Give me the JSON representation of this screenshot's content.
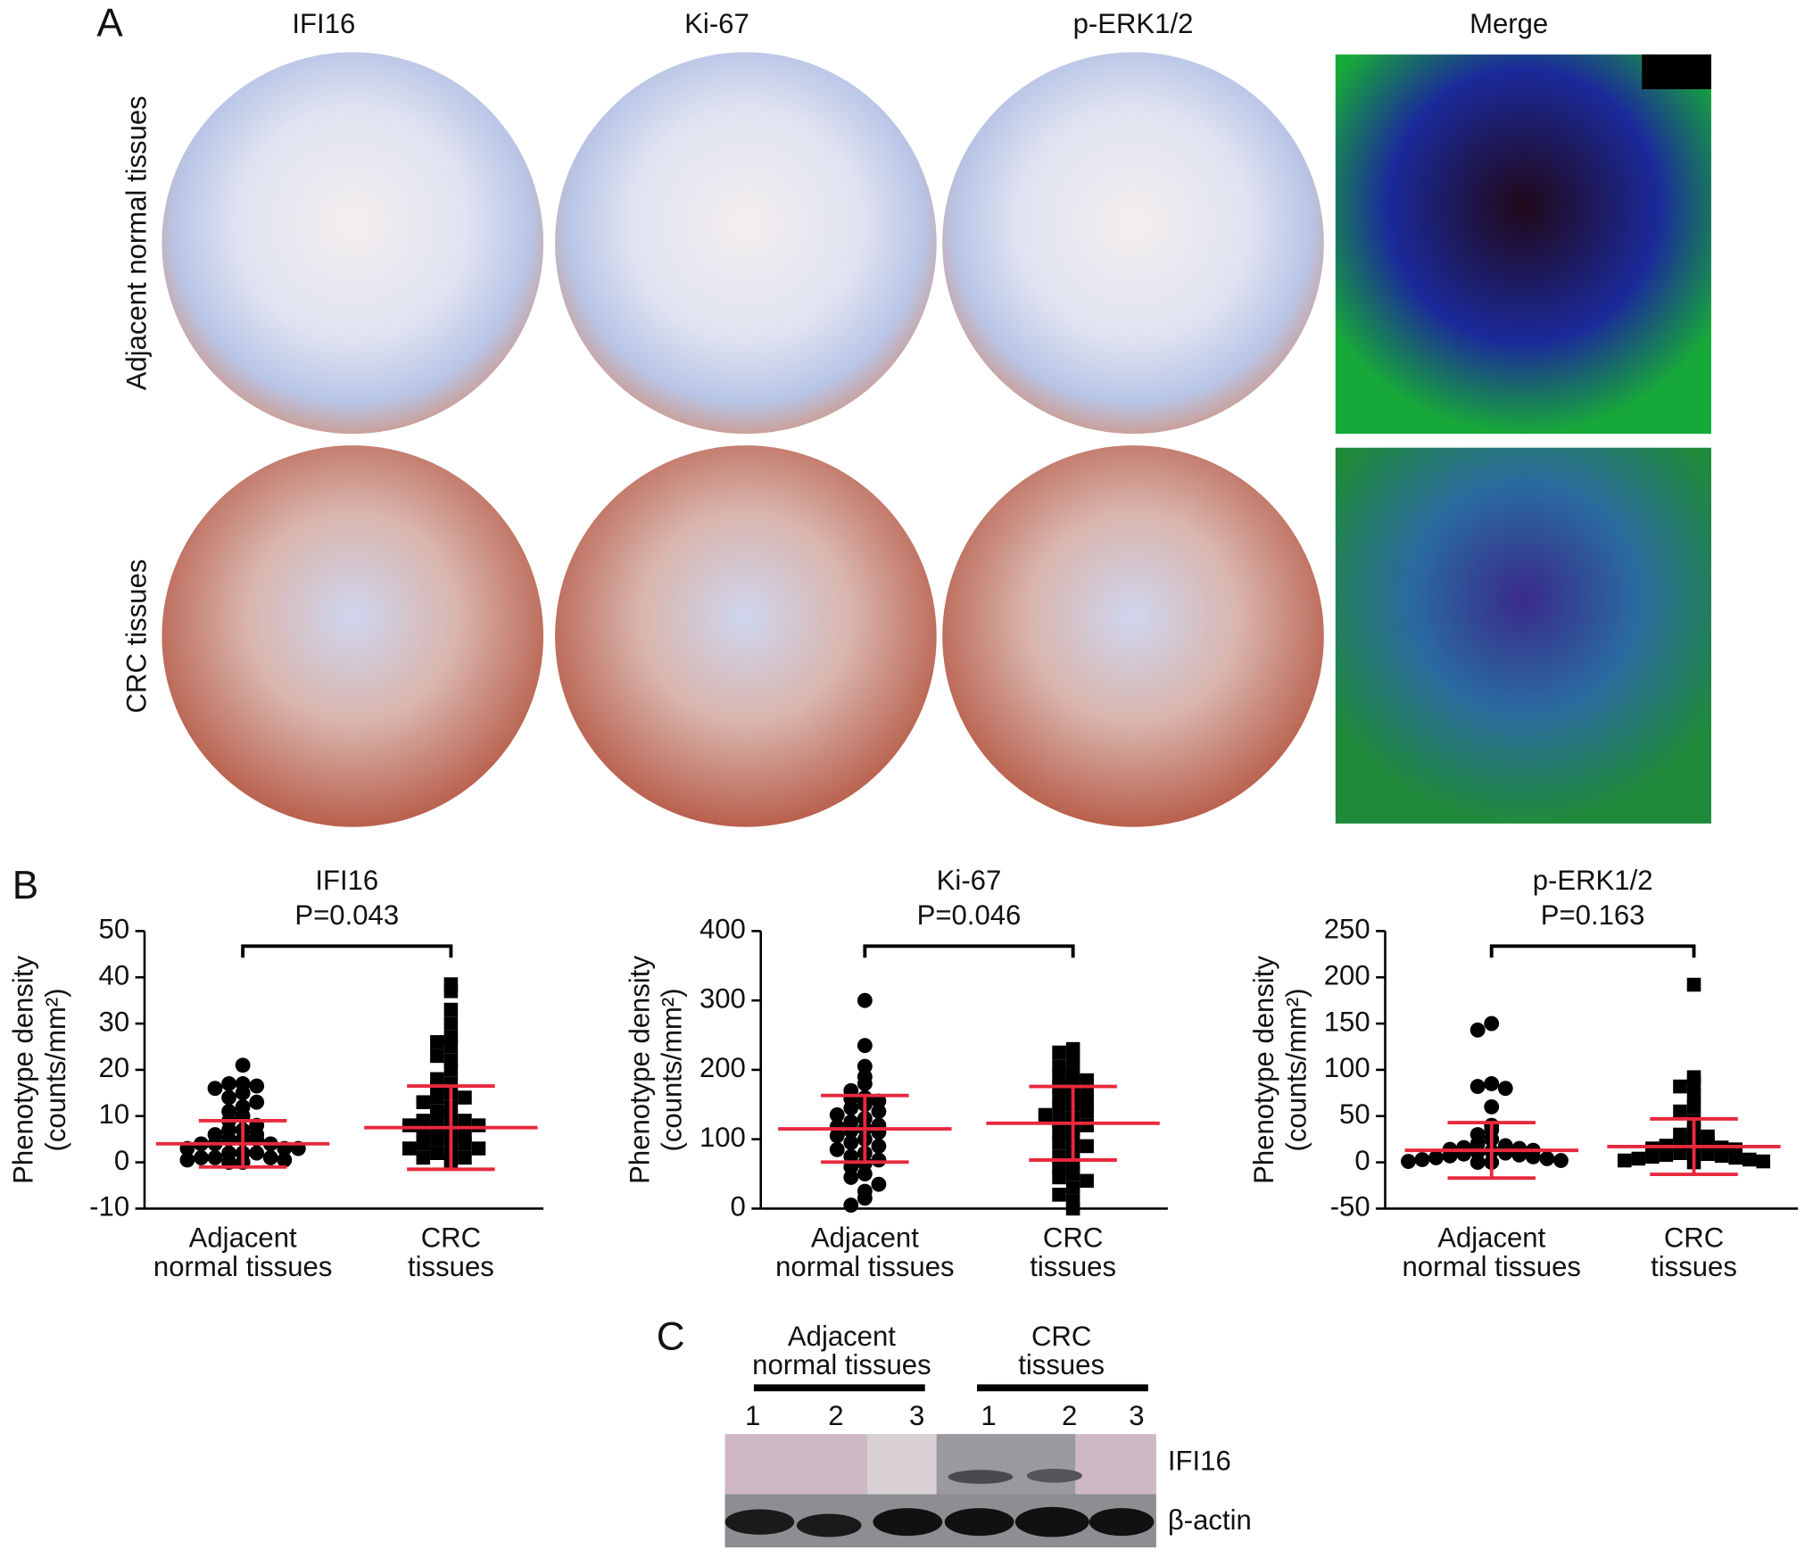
{
  "panel_labels": [
    "A",
    "B",
    "C"
  ],
  "panel_a": {
    "columns": [
      "IFI16",
      "Ki-67",
      "p-ERK1/2",
      "Merge"
    ],
    "rows": [
      "Adjacent normal tissues",
      "CRC tissues"
    ]
  },
  "chart_data": [
    {
      "type": "dot-plot",
      "title": "IFI16",
      "annotation": "P=0.043",
      "ylabel": [
        "Phenotype density",
        "(counts/mm²)"
      ],
      "categories": [
        [
          "Adjacent",
          "normal tissues"
        ],
        [
          "CRC",
          "tissues"
        ]
      ],
      "groups": [
        {
          "marker": "circle",
          "color": "#000000",
          "mean": 4,
          "sd": 5,
          "values": [
            21,
            17,
            17,
            16.5,
            16,
            15,
            14,
            13,
            12,
            11,
            10,
            9,
            8,
            7,
            7,
            6,
            6,
            5,
            5,
            5,
            4,
            4,
            4,
            3,
            3,
            3,
            2,
            2,
            2,
            1,
            1,
            1,
            0.5,
            0.5,
            0,
            0
          ]
        },
        {
          "marker": "square",
          "color": "#000000",
          "mean": 7.5,
          "sd": 9,
          "values": [
            38.5,
            37,
            33,
            30,
            27,
            26,
            25,
            23,
            22,
            20,
            18,
            17,
            16,
            15,
            14,
            14,
            13,
            12,
            11,
            10,
            10,
            9,
            9,
            8,
            8,
            7,
            7,
            6,
            6,
            5,
            5,
            4,
            4,
            3,
            3,
            2,
            2,
            1,
            1,
            0
          ]
        }
      ],
      "errorbar_color": "#e8283c",
      "ylim": [
        -10,
        50
      ],
      "yticks": [
        -10,
        0,
        10,
        20,
        30,
        40,
        50
      ]
    },
    {
      "type": "dot-plot",
      "title": "Ki-67",
      "annotation": "P=0.046",
      "ylabel": [
        "Phenotype density",
        "(counts/mm²)"
      ],
      "categories": [
        [
          "Adjacent",
          "normal tissues"
        ],
        [
          "CRC",
          "tissues"
        ]
      ],
      "groups": [
        {
          "marker": "circle",
          "color": "#000000",
          "mean": 115,
          "sd": 48,
          "values": [
            300,
            235,
            205,
            190,
            180,
            170,
            160,
            158,
            155,
            150,
            145,
            140,
            135,
            130,
            125,
            120,
            118,
            115,
            112,
            110,
            105,
            100,
            95,
            90,
            85,
            80,
            75,
            70,
            65,
            60,
            50,
            45,
            35,
            25,
            15,
            5
          ]
        },
        {
          "marker": "square",
          "color": "#000000",
          "mean": 123,
          "sd": 53,
          "values": [
            230,
            225,
            215,
            205,
            195,
            190,
            185,
            180,
            175,
            170,
            165,
            160,
            155,
            150,
            145,
            140,
            135,
            130,
            125,
            120,
            115,
            110,
            100,
            95,
            90,
            80,
            75,
            65,
            60,
            50,
            45,
            40,
            30,
            20,
            10,
            0
          ]
        }
      ],
      "errorbar_color": "#e8283c",
      "ylim": [
        0,
        400
      ],
      "yticks": [
        0,
        100,
        200,
        300,
        400
      ]
    },
    {
      "type": "dot-plot",
      "title": "p-ERK1/2",
      "annotation": "P=0.163",
      "ylabel": [
        "Phenotype density",
        "(counts/mm²)"
      ],
      "categories": [
        [
          "Adjacent",
          "normal tissues"
        ],
        [
          "CRC",
          "tissues"
        ]
      ],
      "groups": [
        {
          "marker": "circle",
          "color": "#000000",
          "mean": 13,
          "sd": 30,
          "values": [
            150,
            143,
            85,
            82,
            80,
            60,
            40,
            35,
            30,
            25,
            20,
            18,
            16,
            15,
            14,
            13,
            12,
            11,
            10,
            9,
            8,
            7,
            6,
            5,
            4,
            3,
            2,
            1,
            0,
            0
          ]
        },
        {
          "marker": "square",
          "color": "#000000",
          "mean": 17,
          "sd": 30,
          "values": [
            192,
            92,
            85,
            82,
            72,
            60,
            55,
            45,
            35,
            30,
            28,
            25,
            22,
            20,
            18,
            16,
            15,
            14,
            12,
            10,
            9,
            8,
            7,
            6,
            5,
            4,
            3,
            2,
            1,
            0
          ]
        }
      ],
      "errorbar_color": "#e8283c",
      "ylim": [
        -50,
        250
      ],
      "yticks": [
        -50,
        0,
        50,
        100,
        150,
        200,
        250
      ]
    }
  ],
  "panel_c": {
    "groups": [
      {
        "label": [
          "Adjacent",
          "normal tissues"
        ],
        "lanes": [
          "1",
          "2",
          "3"
        ]
      },
      {
        "label": [
          "CRC",
          "tissues"
        ],
        "lanes": [
          "1",
          "2",
          "3"
        ]
      }
    ],
    "bands": [
      "IFI16",
      "β-actin"
    ]
  }
}
